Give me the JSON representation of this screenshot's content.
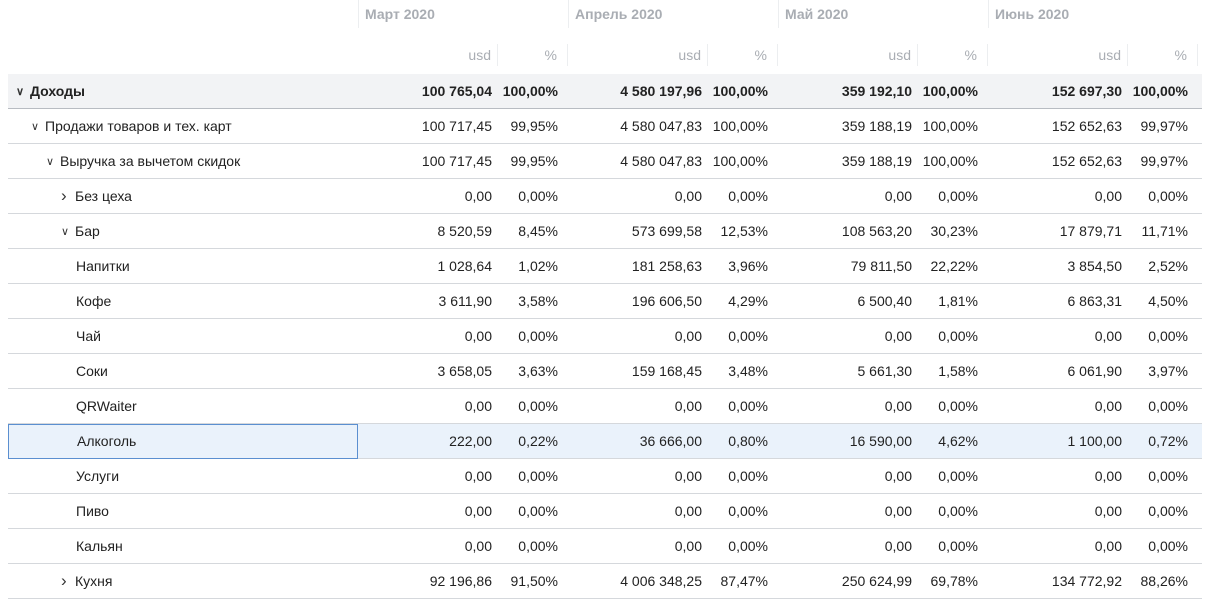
{
  "months": [
    "Март 2020",
    "Апрель 2020",
    "Май 2020",
    "Июнь 2020"
  ],
  "sub_headers": {
    "usd": "usd",
    "pct": "%"
  },
  "rows": [
    {
      "label": "Доходы",
      "level": 0,
      "toggle": "expanded",
      "total": true,
      "values": [
        "100 765,04",
        "100,00%",
        "4 580 197,96",
        "100,00%",
        "359 192,10",
        "100,00%",
        "152 697,30",
        "100,00%"
      ]
    },
    {
      "label": "Продажи товаров и тех. карт",
      "level": 1,
      "toggle": "expanded",
      "values": [
        "100 717,45",
        "99,95%",
        "4 580 047,83",
        "100,00%",
        "359 188,19",
        "100,00%",
        "152 652,63",
        "99,97%"
      ]
    },
    {
      "label": "Выручка за вычетом скидок",
      "level": 2,
      "toggle": "expanded",
      "values": [
        "100 717,45",
        "99,95%",
        "4 580 047,83",
        "100,00%",
        "359 188,19",
        "100,00%",
        "152 652,63",
        "99,97%"
      ]
    },
    {
      "label": "Без цеха",
      "level": 3,
      "toggle": "collapsed",
      "values": [
        "0,00",
        "0,00%",
        "0,00",
        "0,00%",
        "0,00",
        "0,00%",
        "0,00",
        "0,00%"
      ]
    },
    {
      "label": "Бар",
      "level": 3,
      "toggle": "expanded",
      "values": [
        "8 520,59",
        "8,45%",
        "573 699,58",
        "12,53%",
        "108 563,20",
        "30,23%",
        "17 879,71",
        "11,71%"
      ]
    },
    {
      "label": "Напитки",
      "level": 4,
      "values": [
        "1 028,64",
        "1,02%",
        "181 258,63",
        "3,96%",
        "79 811,50",
        "22,22%",
        "3 854,50",
        "2,52%"
      ]
    },
    {
      "label": "Кофе",
      "level": 4,
      "values": [
        "3 611,90",
        "3,58%",
        "196 606,50",
        "4,29%",
        "6 500,40",
        "1,81%",
        "6 863,31",
        "4,50%"
      ]
    },
    {
      "label": "Чай",
      "level": 4,
      "values": [
        "0,00",
        "0,00%",
        "0,00",
        "0,00%",
        "0,00",
        "0,00%",
        "0,00",
        "0,00%"
      ]
    },
    {
      "label": "Соки",
      "level": 4,
      "values": [
        "3 658,05",
        "3,63%",
        "159 168,45",
        "3,48%",
        "5 661,30",
        "1,58%",
        "6 061,90",
        "3,97%"
      ]
    },
    {
      "label": "QRWaiter",
      "level": 4,
      "values": [
        "0,00",
        "0,00%",
        "0,00",
        "0,00%",
        "0,00",
        "0,00%",
        "0,00",
        "0,00%"
      ]
    },
    {
      "label": "Алкоголь",
      "level": 4,
      "selected": true,
      "values": [
        "222,00",
        "0,22%",
        "36 666,00",
        "0,80%",
        "16 590,00",
        "4,62%",
        "1 100,00",
        "0,72%"
      ]
    },
    {
      "label": "Услуги",
      "level": 4,
      "values": [
        "0,00",
        "0,00%",
        "0,00",
        "0,00%",
        "0,00",
        "0,00%",
        "0,00",
        "0,00%"
      ]
    },
    {
      "label": "Пиво",
      "level": 4,
      "values": [
        "0,00",
        "0,00%",
        "0,00",
        "0,00%",
        "0,00",
        "0,00%",
        "0,00",
        "0,00%"
      ]
    },
    {
      "label": "Кальян",
      "level": 4,
      "values": [
        "0,00",
        "0,00%",
        "0,00",
        "0,00%",
        "0,00",
        "0,00%",
        "0,00",
        "0,00%"
      ]
    },
    {
      "label": "Кухня",
      "level": 3,
      "toggle": "collapsed",
      "values": [
        "92 196,86",
        "91,50%",
        "4 006 348,25",
        "87,47%",
        "250 624,99",
        "69,78%",
        "134 772,92",
        "88,26%"
      ]
    }
  ]
}
